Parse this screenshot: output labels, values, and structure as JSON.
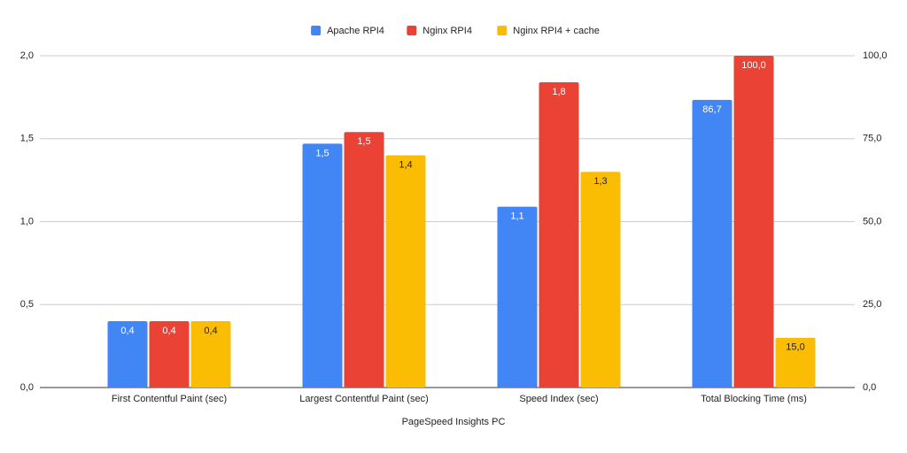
{
  "chart_data": {
    "type": "bar",
    "x_label": "PageSpeed Insights PC",
    "categories": [
      "First Contentful Paint (sec)",
      "Largest Contentful Paint (sec)",
      "Speed Index (sec)",
      "Total Blocking Time (ms)"
    ],
    "category_axis": [
      "y",
      "y",
      "y",
      "y2"
    ],
    "series": [
      {
        "name": "Apache RPI4",
        "color": "#4285f4",
        "values": [
          0.4,
          1.47,
          1.09,
          86.7
        ],
        "value_labels": [
          "0,4",
          "1,5",
          "1,1",
          "86,7"
        ]
      },
      {
        "name": "Nginx RPI4",
        "color": "#ea4335",
        "values": [
          0.4,
          1.54,
          1.84,
          100
        ],
        "value_labels": [
          "0,4",
          "1,5",
          "1,8",
          "100,0"
        ]
      },
      {
        "name": "Nginx RPI4 + cache",
        "color": "#fbbc04",
        "values": [
          0.4,
          1.4,
          1.3,
          15
        ],
        "value_labels": [
          "0,4",
          "1,4",
          "1,3",
          "15,0"
        ]
      }
    ],
    "ylim": [
      0,
      2
    ],
    "yticks": [
      {
        "value": 0,
        "label": "0,0"
      },
      {
        "value": 0.5,
        "label": "0,5"
      },
      {
        "value": 1,
        "label": "1,0"
      },
      {
        "value": 1.5,
        "label": "1,5"
      },
      {
        "value": 2,
        "label": "2,0"
      }
    ],
    "y2lim": [
      0,
      100
    ],
    "y2ticks": [
      {
        "value": 0,
        "label": "0,0"
      },
      {
        "value": 25,
        "label": "25,0"
      },
      {
        "value": 50,
        "label": "50,0"
      },
      {
        "value": 75,
        "label": "75,0"
      },
      {
        "value": 100,
        "label": "100,0"
      }
    ],
    "grid": true,
    "legend": "top"
  }
}
